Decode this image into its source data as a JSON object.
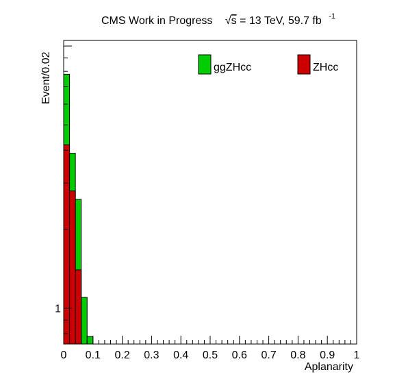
{
  "chart_data": {
    "type": "bar",
    "stacked": true,
    "title": {
      "prefix": "CMS Work in Progress",
      "sqrt_symbol": "√",
      "sqrt_var": "s",
      "energy": " = 13 TeV, 59.7 fb",
      "lumi_exponent": "-1"
    },
    "xlabel": "Aplanarity",
    "ylabel": "Event/0.02",
    "xlim": [
      0,
      1
    ],
    "ylim_log": [
      0.73,
      10.5
    ],
    "y_scale": "log",
    "x_ticks": [
      "0",
      "0.1",
      "0.2",
      "0.3",
      "0.4",
      "0.5",
      "0.6",
      "0.7",
      "0.8",
      "0.9",
      "1"
    ],
    "y_tick_labels": [
      {
        "value": 1,
        "label": "1"
      }
    ],
    "bin_edges": [
      0,
      0.02,
      0.04,
      0.06,
      0.08,
      0.1
    ],
    "series": [
      {
        "name": "ZHcc",
        "color": "#cc0000",
        "values": [
          4.2,
          2.8,
          1.4,
          0.73,
          0.73
        ]
      },
      {
        "name": "ggZHcc",
        "color": "#00cc00",
        "values": [
          7.8,
          3.9,
          2.6,
          1.1,
          0.78
        ]
      }
    ],
    "legend": {
      "placement": "top-right",
      "entries": [
        {
          "name": "ggZHcc",
          "color": "#00cc00"
        },
        {
          "name": "ZHcc",
          "color": "#cc0000"
        }
      ]
    },
    "grid": false
  }
}
